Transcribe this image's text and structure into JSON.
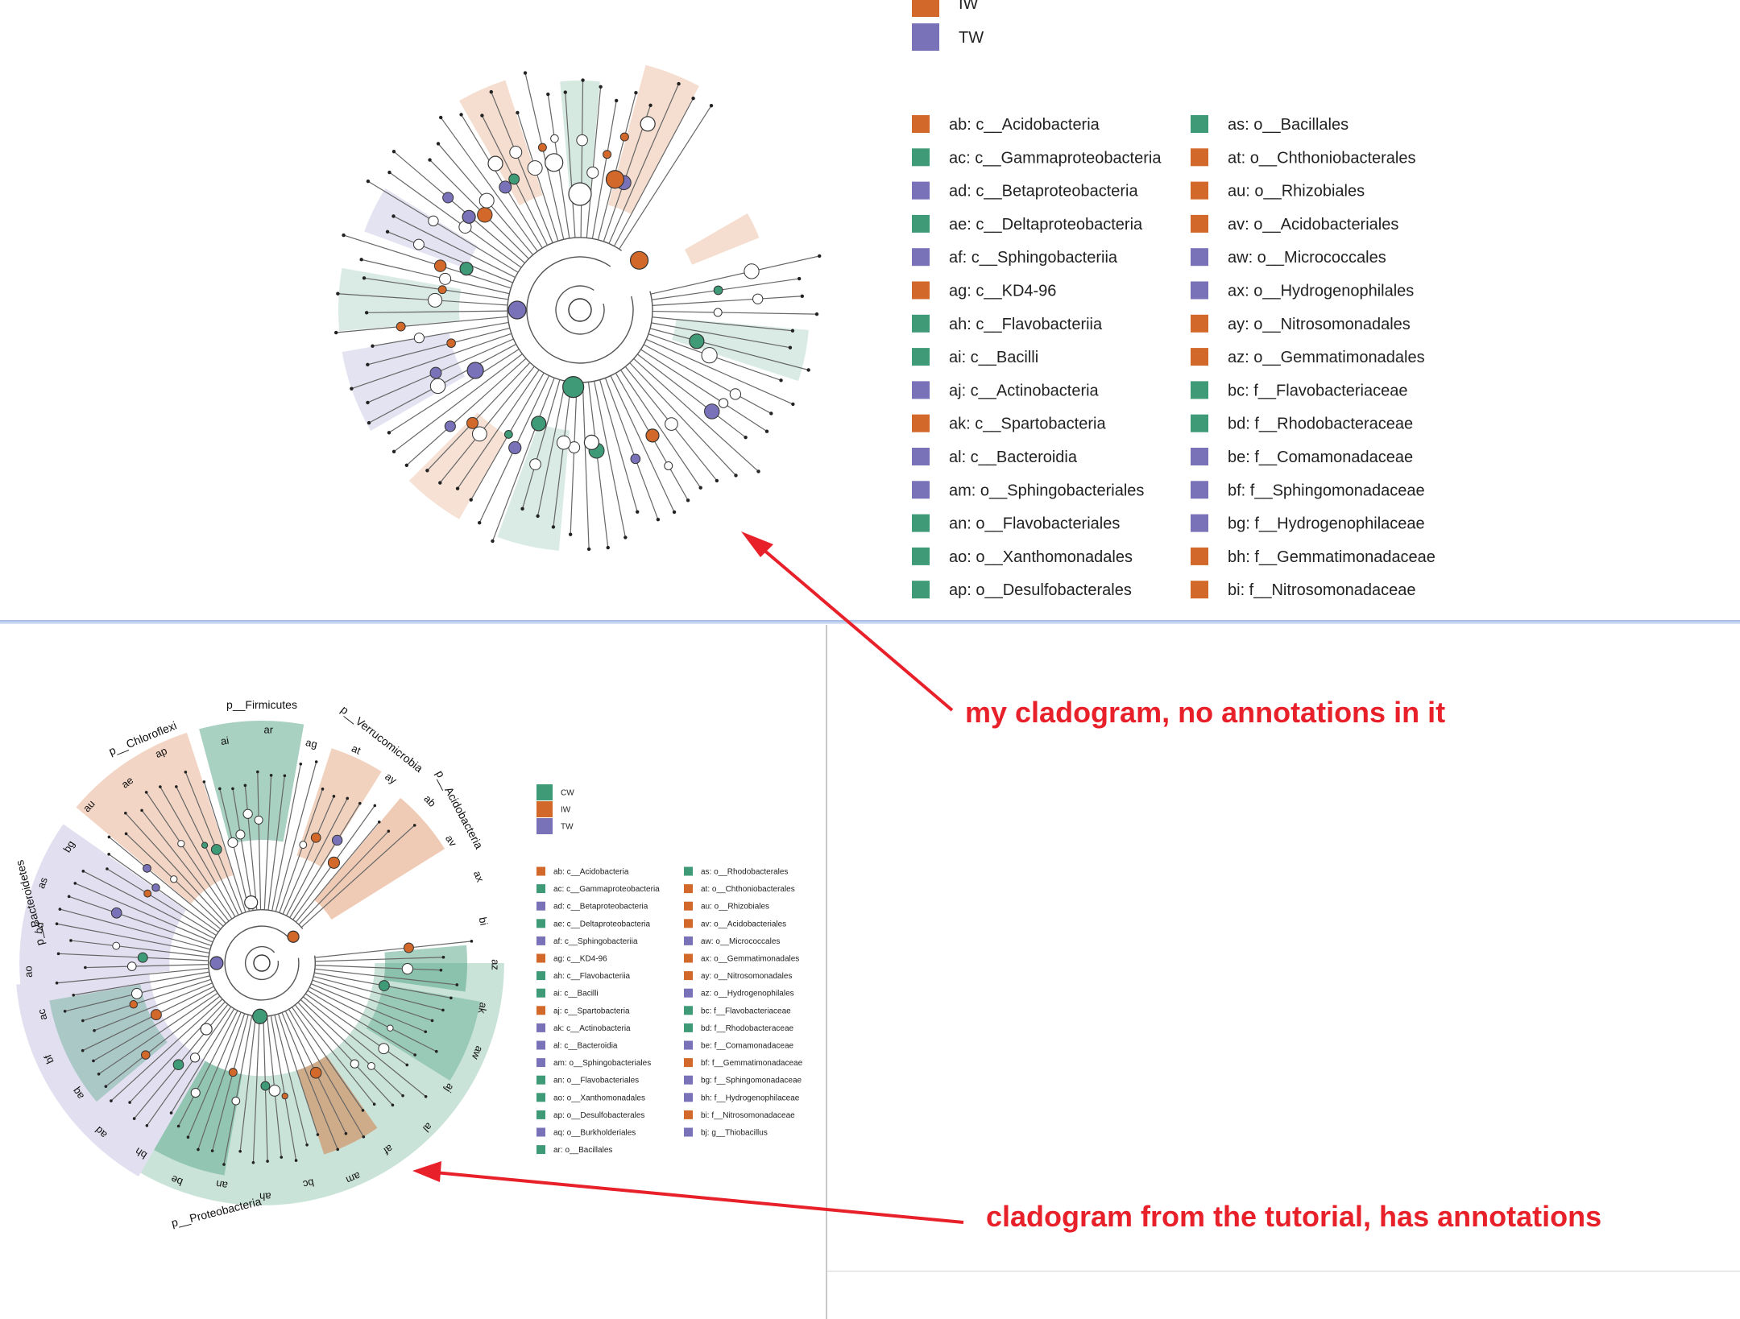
{
  "legend_top": {
    "groups": [
      {
        "label": "IW",
        "color": "#d2692a"
      },
      {
        "label": "TW",
        "color": "#7a72b9"
      }
    ],
    "col1": [
      {
        "label": "ab: c__Acidobacteria",
        "color": "#d2692a"
      },
      {
        "label": "ac: c__Gammaproteobacteria",
        "color": "#3f9a78"
      },
      {
        "label": "ad: c__Betaproteobacteria",
        "color": "#7a72b9"
      },
      {
        "label": "ae: c__Deltaproteobacteria",
        "color": "#3f9a78"
      },
      {
        "label": "af: c__Sphingobacteriia",
        "color": "#7a72b9"
      },
      {
        "label": "ag: c__KD4-96",
        "color": "#d2692a"
      },
      {
        "label": "ah: c__Flavobacteriia",
        "color": "#3f9a78"
      },
      {
        "label": "ai: c__Bacilli",
        "color": "#3f9a78"
      },
      {
        "label": "aj: c__Actinobacteria",
        "color": "#7a72b9"
      },
      {
        "label": "ak: c__Spartobacteria",
        "color": "#d2692a"
      },
      {
        "label": "al: c__Bacteroidia",
        "color": "#7a72b9"
      },
      {
        "label": "am: o__Sphingobacteriales",
        "color": "#7a72b9"
      },
      {
        "label": "an: o__Flavobacteriales",
        "color": "#3f9a78"
      },
      {
        "label": "ao: o__Xanthomonadales",
        "color": "#3f9a78"
      },
      {
        "label": "ap: o__Desulfobacterales",
        "color": "#3f9a78"
      }
    ],
    "col2": [
      {
        "label": "as: o__Bacillales",
        "color": "#3f9a78"
      },
      {
        "label": "at: o__Chthoniobacterales",
        "color": "#d2692a"
      },
      {
        "label": "au: o__Rhizobiales",
        "color": "#d2692a"
      },
      {
        "label": "av: o__Acidobacteriales",
        "color": "#d2692a"
      },
      {
        "label": "aw: o__Micrococcales",
        "color": "#7a72b9"
      },
      {
        "label": "ax: o__Hydrogenophilales",
        "color": "#7a72b9"
      },
      {
        "label": "ay: o__Nitrosomonadales",
        "color": "#d2692a"
      },
      {
        "label": "az: o__Gemmatimonadales",
        "color": "#d2692a"
      },
      {
        "label": "bc: f__Flavobacteriaceae",
        "color": "#3f9a78"
      },
      {
        "label": "bd: f__Rhodobacteraceae",
        "color": "#3f9a78"
      },
      {
        "label": "be: f__Comamonadaceae",
        "color": "#7a72b9"
      },
      {
        "label": "bf: f__Sphingomonadaceae",
        "color": "#7a72b9"
      },
      {
        "label": "bg: f__Hydrogenophilaceae",
        "color": "#7a72b9"
      },
      {
        "label": "bh: f__Gemmatimonadaceae",
        "color": "#d2692a"
      },
      {
        "label": "bi: f__Nitrosomonadaceae",
        "color": "#d2692a"
      }
    ]
  },
  "legend_bottom": {
    "groups": [
      {
        "label": "CW",
        "color": "#3f9a78"
      },
      {
        "label": "IW",
        "color": "#d2692a"
      },
      {
        "label": "TW",
        "color": "#7a72b9"
      }
    ],
    "col1": [
      {
        "label": "ab: c__Acidobacteria",
        "color": "#d2692a"
      },
      {
        "label": "ac: c__Gammaproteobacteria",
        "color": "#3f9a78"
      },
      {
        "label": "ad: c__Betaproteobacteria",
        "color": "#7a72b9"
      },
      {
        "label": "ae: c__Deltaproteobacteria",
        "color": "#3f9a78"
      },
      {
        "label": "af: c__Sphingobacteriia",
        "color": "#7a72b9"
      },
      {
        "label": "ag: c__KD4-96",
        "color": "#d2692a"
      },
      {
        "label": "ah: c__Flavobacteriia",
        "color": "#3f9a78"
      },
      {
        "label": "ai: c__Bacilli",
        "color": "#3f9a78"
      },
      {
        "label": "aj: c__Spartobacteria",
        "color": "#d2692a"
      },
      {
        "label": "ak: c__Actinobacteria",
        "color": "#7a72b9"
      },
      {
        "label": "al: c__Bacteroidia",
        "color": "#7a72b9"
      },
      {
        "label": "am: o__Sphingobacteriales",
        "color": "#7a72b9"
      },
      {
        "label": "an: o__Flavobacteriales",
        "color": "#3f9a78"
      },
      {
        "label": "ao: o__Xanthomonadales",
        "color": "#3f9a78"
      },
      {
        "label": "ap: o__Desulfobacterales",
        "color": "#3f9a78"
      },
      {
        "label": "aq: o__Burkholderiales",
        "color": "#7a72b9"
      },
      {
        "label": "ar: o__Bacillales",
        "color": "#3f9a78"
      }
    ],
    "col2": [
      {
        "label": "as: o__Rhodobacterales",
        "color": "#3f9a78"
      },
      {
        "label": "at: o__Chthoniobacterales",
        "color": "#d2692a"
      },
      {
        "label": "au: o__Rhizobiales",
        "color": "#d2692a"
      },
      {
        "label": "av: o__Acidobacteriales",
        "color": "#d2692a"
      },
      {
        "label": "aw: o__Micrococcales",
        "color": "#7a72b9"
      },
      {
        "label": "ax: o__Gemmatimonadales",
        "color": "#d2692a"
      },
      {
        "label": "ay: o__Nitrosomonadales",
        "color": "#d2692a"
      },
      {
        "label": "az: o__Hydrogenophilales",
        "color": "#7a72b9"
      },
      {
        "label": "bc: f__Flavobacteriaceae",
        "color": "#3f9a78"
      },
      {
        "label": "bd: f__Rhodobacteraceae",
        "color": "#3f9a78"
      },
      {
        "label": "be: f__Comamonadaceae",
        "color": "#7a72b9"
      },
      {
        "label": "bf: f__Gemmatimonadaceae",
        "color": "#d2692a"
      },
      {
        "label": "bg: f__Sphingomonadaceae",
        "color": "#7a72b9"
      },
      {
        "label": "bh: f__Hydrogenophilaceae",
        "color": "#7a72b9"
      },
      {
        "label": "bi: f__Nitrosomonadaceae",
        "color": "#d2692a"
      },
      {
        "label": "bj: g__Thiobacillus",
        "color": "#7a72b9"
      }
    ]
  },
  "clade_labels": {
    "phyla": [
      "p__Chloroflexi",
      "p__Firmicutes",
      "p__Verrucomicrobia",
      "p__Acidobacteria",
      "p__Bacteroidetes",
      "p__Proteobacteria"
    ],
    "small": [
      "ai",
      "ar",
      "ag",
      "at",
      "ay",
      "ab",
      "av",
      "ax",
      "bi",
      "az",
      "ak",
      "aw",
      "aj",
      "al",
      "af",
      "am",
      "bc",
      "ah",
      "an",
      "be",
      "bh",
      "ad",
      "aq",
      "bf",
      "ac",
      "ao",
      "bd",
      "as",
      "bg",
      "au",
      "ae",
      "ap"
    ]
  },
  "captions": {
    "top": "my cladogram, no annotations in it",
    "bottom": "cladogram from the tutorial, has annotations"
  },
  "colors": {
    "CW": "#3f9a78",
    "IW": "#d2692a",
    "TW": "#7a72b9",
    "annotation": "#e8202a"
  }
}
